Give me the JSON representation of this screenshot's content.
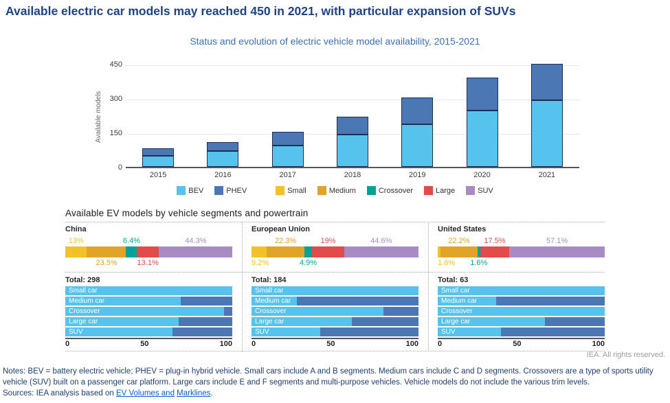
{
  "header": {
    "title": "Available electric car models may reached 450 in 2021, with particular expansion of SUVs"
  },
  "colors": {
    "bev": "#55C3EE",
    "phev": "#4B77B5",
    "small": "#F2C029",
    "medium": "#E2A32B",
    "crossover": "#00A396",
    "large": "#E14B4B",
    "suv": "#A78BC2"
  },
  "legend": {
    "items": [
      {
        "label": "BEV",
        "key": "bev",
        "gap_before": false
      },
      {
        "label": "PHEV",
        "key": "phev",
        "gap_before": false
      },
      {
        "label": "Small",
        "key": "small",
        "gap_before": true
      },
      {
        "label": "Medium",
        "key": "medium",
        "gap_before": false
      },
      {
        "label": "Crossover",
        "key": "crossover",
        "gap_before": false
      },
      {
        "label": "Large",
        "key": "large",
        "gap_before": false
      },
      {
        "label": "SUV",
        "key": "suv",
        "gap_before": false
      }
    ]
  },
  "chart_data": [
    {
      "id": "model-availability",
      "type": "bar",
      "stacked": true,
      "title": "Status and evolution of electric vehicle model availability, 2015-2021",
      "ylabel": "Available models",
      "categories": [
        "2015",
        "2016",
        "2017",
        "2018",
        "2019",
        "2020",
        "2021"
      ],
      "series": [
        {
          "name": "BEV",
          "color": "bev",
          "values": [
            48,
            68,
            93,
            142,
            187,
            246,
            290
          ]
        },
        {
          "name": "PHEV",
          "color": "phev",
          "values": [
            34,
            40,
            59,
            78,
            117,
            143,
            160
          ]
        }
      ],
      "ylim": [
        0,
        450
      ],
      "yticks": [
        0,
        150,
        300,
        450
      ],
      "grid": "horizontal",
      "legend_position": "bottom"
    },
    {
      "id": "segments-by-region",
      "type": "bar",
      "subtype": "horizontal-stacked-percent",
      "heading": "Available EV models by vehicle segments and powertrain",
      "regions": [
        {
          "name": "China",
          "total_label": "Total",
          "total_value": 298,
          "segment_shares": [
            {
              "segment": "Small",
              "color": "small",
              "pct": 13.0,
              "label": "13%",
              "label_side": "above"
            },
            {
              "segment": "Medium",
              "color": "medium",
              "pct": 23.5,
              "label": "23.5%",
              "label_side": "below"
            },
            {
              "segment": "Crossover",
              "color": "crossover",
              "pct": 6.4,
              "label": "6.4%",
              "label_side": "above"
            },
            {
              "segment": "Large",
              "color": "large",
              "pct": 13.1,
              "label": "13.1%",
              "label_side": "below"
            },
            {
              "segment": "SUV",
              "color": "suv",
              "pct": 44.3,
              "label": "44.3%",
              "label_side": "above"
            }
          ],
          "powertrain_split_rows": [
            {
              "label": "Small car",
              "bev_pct": 100
            },
            {
              "label": "Medium car",
              "bev_pct": 69
            },
            {
              "label": "Crossover",
              "bev_pct": 95
            },
            {
              "label": "Large car",
              "bev_pct": 68
            },
            {
              "label": "SUV",
              "bev_pct": 64
            }
          ],
          "xticks": [
            0,
            50,
            100
          ]
        },
        {
          "name": "European Union",
          "total_label": "Total",
          "total_value": 184,
          "segment_shares": [
            {
              "segment": "Small",
              "color": "small",
              "pct": 9.2,
              "label": "9.2%",
              "label_side": "below"
            },
            {
              "segment": "Medium",
              "color": "medium",
              "pct": 22.3,
              "label": "22.3%",
              "label_side": "above"
            },
            {
              "segment": "Crossover",
              "color": "crossover",
              "pct": 4.9,
              "label": "4.9%",
              "label_side": "below"
            },
            {
              "segment": "Large",
              "color": "large",
              "pct": 19.0,
              "label": "19%",
              "label_side": "above"
            },
            {
              "segment": "SUV",
              "color": "suv",
              "pct": 44.6,
              "label": "44.6%",
              "label_side": "above"
            }
          ],
          "powertrain_split_rows": [
            {
              "label": "Small car",
              "bev_pct": 100
            },
            {
              "label": "Medium car",
              "bev_pct": 27
            },
            {
              "label": "Crossover",
              "bev_pct": 79
            },
            {
              "label": "Large car",
              "bev_pct": 60
            },
            {
              "label": "SUV",
              "bev_pct": 41
            }
          ],
          "xticks": [
            0,
            50,
            100
          ]
        },
        {
          "name": "United States",
          "total_label": "Total",
          "total_value": 63,
          "segment_shares": [
            {
              "segment": "Small",
              "color": "small",
              "pct": 1.6,
              "label": "1.6%",
              "label_side": "below"
            },
            {
              "segment": "Medium",
              "color": "medium",
              "pct": 22.2,
              "label": "22.2%",
              "label_side": "above"
            },
            {
              "segment": "Crossover",
              "color": "crossover",
              "pct": 1.6,
              "label": "1.6%",
              "label_side": "below"
            },
            {
              "segment": "Large",
              "color": "large",
              "pct": 17.5,
              "label": "17.5%",
              "label_side": "above"
            },
            {
              "segment": "SUV",
              "color": "suv",
              "pct": 57.1,
              "label": "57.1%",
              "label_side": "above"
            }
          ],
          "powertrain_split_rows": [
            {
              "label": "Small car",
              "bev_pct": 100
            },
            {
              "label": "Medium car",
              "bev_pct": 35
            },
            {
              "label": "Crossover",
              "bev_pct": 100
            },
            {
              "label": "Large car",
              "bev_pct": 64
            },
            {
              "label": "SUV",
              "bev_pct": 38
            }
          ],
          "xticks": [
            0,
            50,
            100
          ]
        }
      ]
    }
  ],
  "footer": {
    "copyright": "IEA. All rights reserved.",
    "notes": "Notes: BEV = battery electric vehicle; PHEV = plug-in hybrid vehicle. Small cars include A and B segments. Medium cars include C and D segments. Crossovers are a type of sports utility vehicle (SUV) built on a passenger car platform. Large cars include E and F segments and multi-purpose vehicles. Vehicle models do not include the various trim levels.",
    "sources_prefix": "Sources: IEA analysis based on ",
    "source_links": [
      "EV Volumes and",
      "Marklines"
    ],
    "sources_suffix": "."
  }
}
